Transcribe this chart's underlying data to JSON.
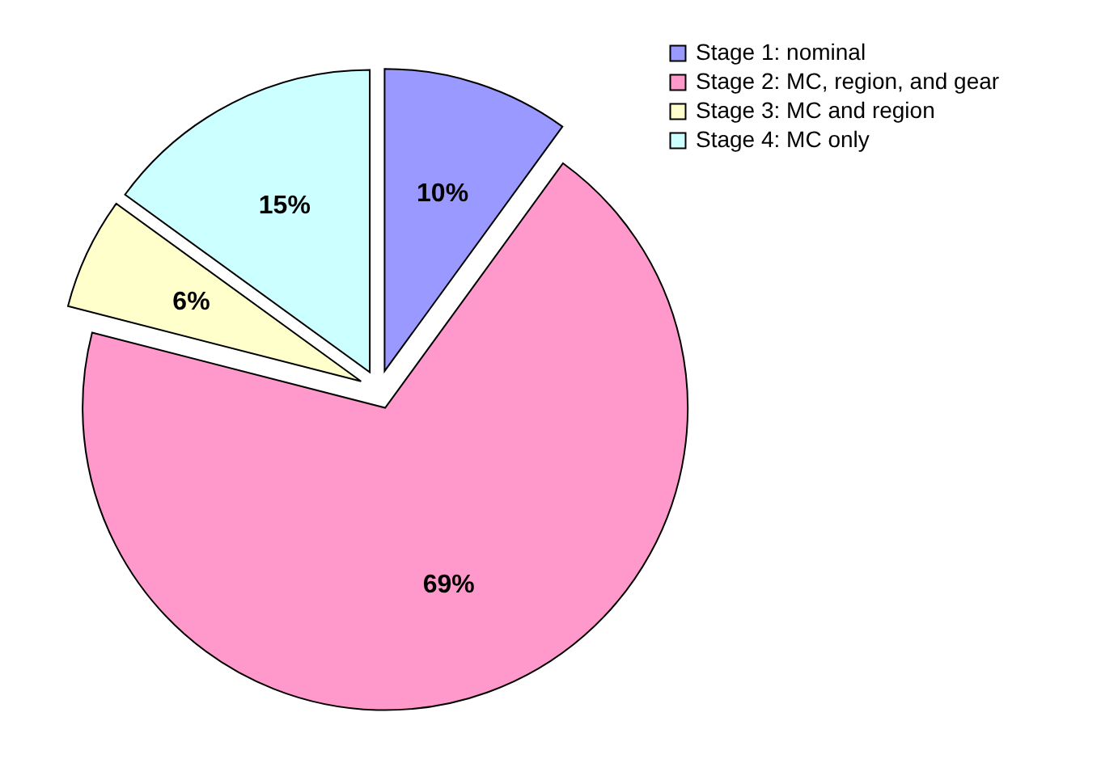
{
  "chart_data": {
    "type": "pie",
    "categories": [
      "Stage 1:  nominal",
      "Stage 2:  MC, region, and gear",
      "Stage 3:  MC and region",
      "Stage 4:  MC only"
    ],
    "values": [
      10,
      69,
      6,
      15
    ],
    "colors": [
      "#9999ff",
      "#ff99cc",
      "#ffffcc",
      "#ccffff"
    ],
    "value_labels": [
      "10%",
      "69%",
      "6%",
      "15%"
    ],
    "legend": "top right"
  }
}
